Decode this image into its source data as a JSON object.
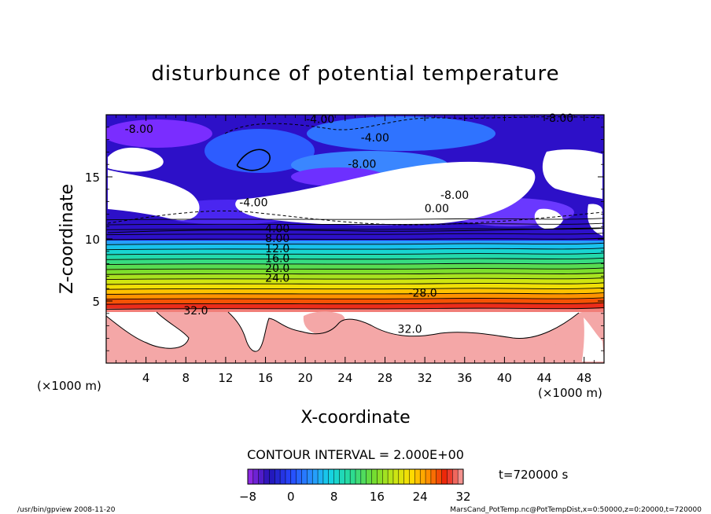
{
  "chart_data": {
    "type": "heatmap",
    "title": "disturbunce of potential temperature",
    "xlabel": "X-coordinate",
    "ylabel": "Z-coordinate",
    "x_unit_label_left": "(×1000 m)",
    "x_unit_label_right": "(×1000 m)",
    "xlim": [
      0,
      50
    ],
    "ylim": [
      0,
      20
    ],
    "x_ticks": [
      4,
      8,
      12,
      16,
      20,
      24,
      28,
      32,
      36,
      40,
      44,
      48
    ],
    "y_ticks": [
      5,
      10,
      15
    ],
    "x_tick_labels": [
      "4",
      "8",
      "12",
      "16",
      "20",
      "24",
      "28",
      "32",
      "36",
      "40",
      "44",
      "48"
    ],
    "y_tick_labels": [
      "5",
      "10",
      "15"
    ],
    "color_min": -8,
    "color_max": 32,
    "contour_interval_text": "CONTOUR INTERVAL = 2.000E+00",
    "colorbar_tick_values": [
      -8,
      0,
      8,
      16,
      24,
      32
    ],
    "colorbar_tick_labels": [
      "−8",
      "0",
      "8",
      "16",
      "24",
      "32"
    ],
    "time_label": "t=720000 s",
    "contour_labels": [
      {
        "text": "-4.00",
        "x": 21.5,
        "z": 19.4
      },
      {
        "text": "-8.00",
        "x": 45.5,
        "z": 19.5
      },
      {
        "text": "-8.00",
        "x": 3.3,
        "z": 18.6
      },
      {
        "text": "-4.00",
        "x": 27.0,
        "z": 17.9
      },
      {
        "text": "-8.00",
        "x": 25.7,
        "z": 15.8
      },
      {
        "text": "-4.00",
        "x": 14.8,
        "z": 12.7
      },
      {
        "text": "-8.00",
        "x": 35.0,
        "z": 13.3
      },
      {
        "text": "0.00",
        "x": 33.2,
        "z": 12.2
      },
      {
        "text": "4.00",
        "x": 17.2,
        "z": 10.6
      },
      {
        "text": "8.00",
        "x": 17.2,
        "z": 9.8
      },
      {
        "text": "12.0",
        "x": 17.2,
        "z": 9.0
      },
      {
        "text": "16.0",
        "x": 17.2,
        "z": 8.2
      },
      {
        "text": "20.0",
        "x": 17.2,
        "z": 7.4
      },
      {
        "text": "24.0",
        "x": 17.2,
        "z": 6.6
      },
      {
        "text": "-28.0",
        "x": 31.8,
        "z": 5.4
      },
      {
        "text": "32.0",
        "x": 9.0,
        "z": 4.0
      },
      {
        "text": "32.0",
        "x": 30.5,
        "z": 2.5
      }
    ],
    "grid": false,
    "legend": "colorbar-bottom"
  },
  "footer": {
    "left": "/usr/bin/gpview  2008-11-20",
    "right": "MarsCand_PotTemp.nc@PotTempDist,x=0:50000,z=0:20000,t=720000"
  }
}
